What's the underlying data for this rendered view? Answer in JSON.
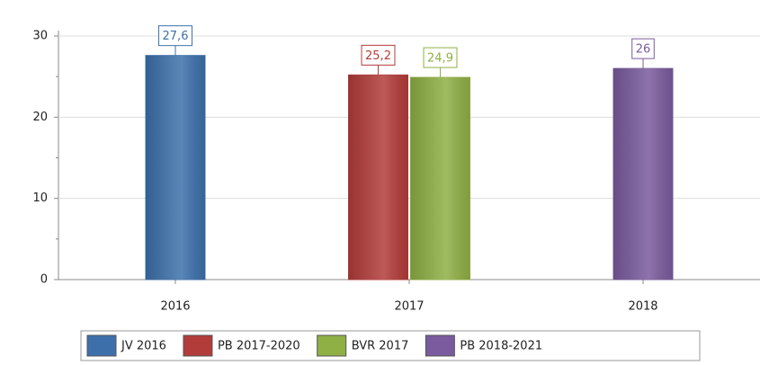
{
  "chart_data": {
    "type": "bar",
    "categories": [
      "2016",
      "2017",
      "2018"
    ],
    "series": [
      {
        "name": "JV 2016",
        "color": "#3d70ab",
        "values": [
          27.6,
          null,
          null
        ],
        "value_labels": [
          "27,6",
          null,
          null
        ]
      },
      {
        "name": "PB 2017-2020",
        "color": "#b23c3a",
        "values": [
          null,
          25.2,
          null
        ],
        "value_labels": [
          null,
          "25,2",
          null
        ]
      },
      {
        "name": "BVR 2017",
        "color": "#8fb045",
        "values": [
          null,
          24.9,
          null
        ],
        "value_labels": [
          null,
          "24,9",
          null
        ]
      },
      {
        "name": "PB 2018-2021",
        "color": "#7a5b9d",
        "values": [
          null,
          null,
          26
        ]
      }
    ],
    "ylim": [
      0,
      30
    ],
    "yticks": [
      0,
      10,
      20,
      30
    ],
    "grid": true,
    "legend": "bottom"
  }
}
